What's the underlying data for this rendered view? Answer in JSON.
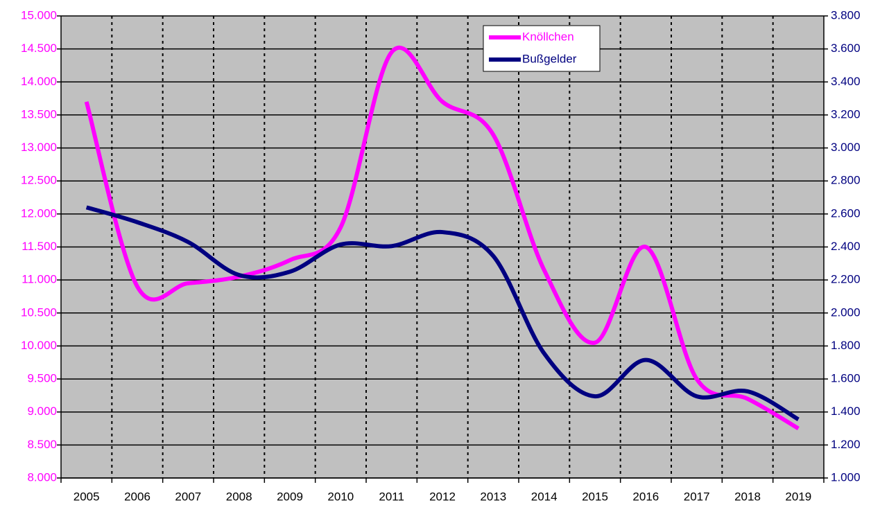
{
  "chart_data": {
    "type": "line",
    "categories": [
      "2005",
      "2006",
      "2007",
      "2008",
      "2009",
      "2010",
      "2011",
      "2012",
      "2013",
      "2014",
      "2015",
      "2016",
      "2017",
      "2018",
      "2019"
    ],
    "series": [
      {
        "name": "Knöllchen",
        "color": "#ff00ff",
        "values": [
          13700,
          10900,
          10950,
          11050,
          11300,
          11800,
          14450,
          13700,
          13200,
          11150,
          10050,
          11500,
          9500,
          9200,
          8750
        ]
      },
      {
        "name": "Bußgelder",
        "color": "#000080",
        "axis": "y2",
        "values": [
          2640,
          2550,
          2430,
          2230,
          2250,
          2415,
          2405,
          2490,
          2345,
          1755,
          1495,
          1715,
          1495,
          1525,
          1355
        ]
      }
    ],
    "ylim": [
      8000,
      15000
    ],
    "yticks": [
      {
        "value": 8000,
        "label": "8.000"
      },
      {
        "value": 8500,
        "label": "8.500"
      },
      {
        "value": 9000,
        "label": "9.000"
      },
      {
        "value": 9500,
        "label": "9.500"
      },
      {
        "value": 10000,
        "label": "10.000"
      },
      {
        "value": 10500,
        "label": "10.500"
      },
      {
        "value": 11000,
        "label": "11.000"
      },
      {
        "value": 11500,
        "label": "11.500"
      },
      {
        "value": 12000,
        "label": "12.000"
      },
      {
        "value": 12500,
        "label": "12.500"
      },
      {
        "value": 13000,
        "label": "13.000"
      },
      {
        "value": 13500,
        "label": "13.500"
      },
      {
        "value": 14000,
        "label": "14.000"
      },
      {
        "value": 14500,
        "label": "14.500"
      },
      {
        "value": 15000,
        "label": "15.000"
      }
    ],
    "y2lim": [
      1000,
      3800
    ],
    "y2ticks": [
      {
        "value": 1000,
        "label": "1.000"
      },
      {
        "value": 1200,
        "label": "1.200"
      },
      {
        "value": 1400,
        "label": "1.400"
      },
      {
        "value": 1600,
        "label": "1.600"
      },
      {
        "value": 1800,
        "label": "1.800"
      },
      {
        "value": 2000,
        "label": "2.000"
      },
      {
        "value": 2200,
        "label": "2.200"
      },
      {
        "value": 2400,
        "label": "2.400"
      },
      {
        "value": 2600,
        "label": "2.600"
      },
      {
        "value": 2800,
        "label": "2.800"
      },
      {
        "value": 3000,
        "label": "3.000"
      },
      {
        "value": 3200,
        "label": "3.200"
      },
      {
        "value": 3400,
        "label": "3.400"
      },
      {
        "value": 3600,
        "label": "3.600"
      },
      {
        "value": 3800,
        "label": "3.800"
      }
    ],
    "grid": true,
    "smooth": true,
    "legend": "top-right"
  }
}
